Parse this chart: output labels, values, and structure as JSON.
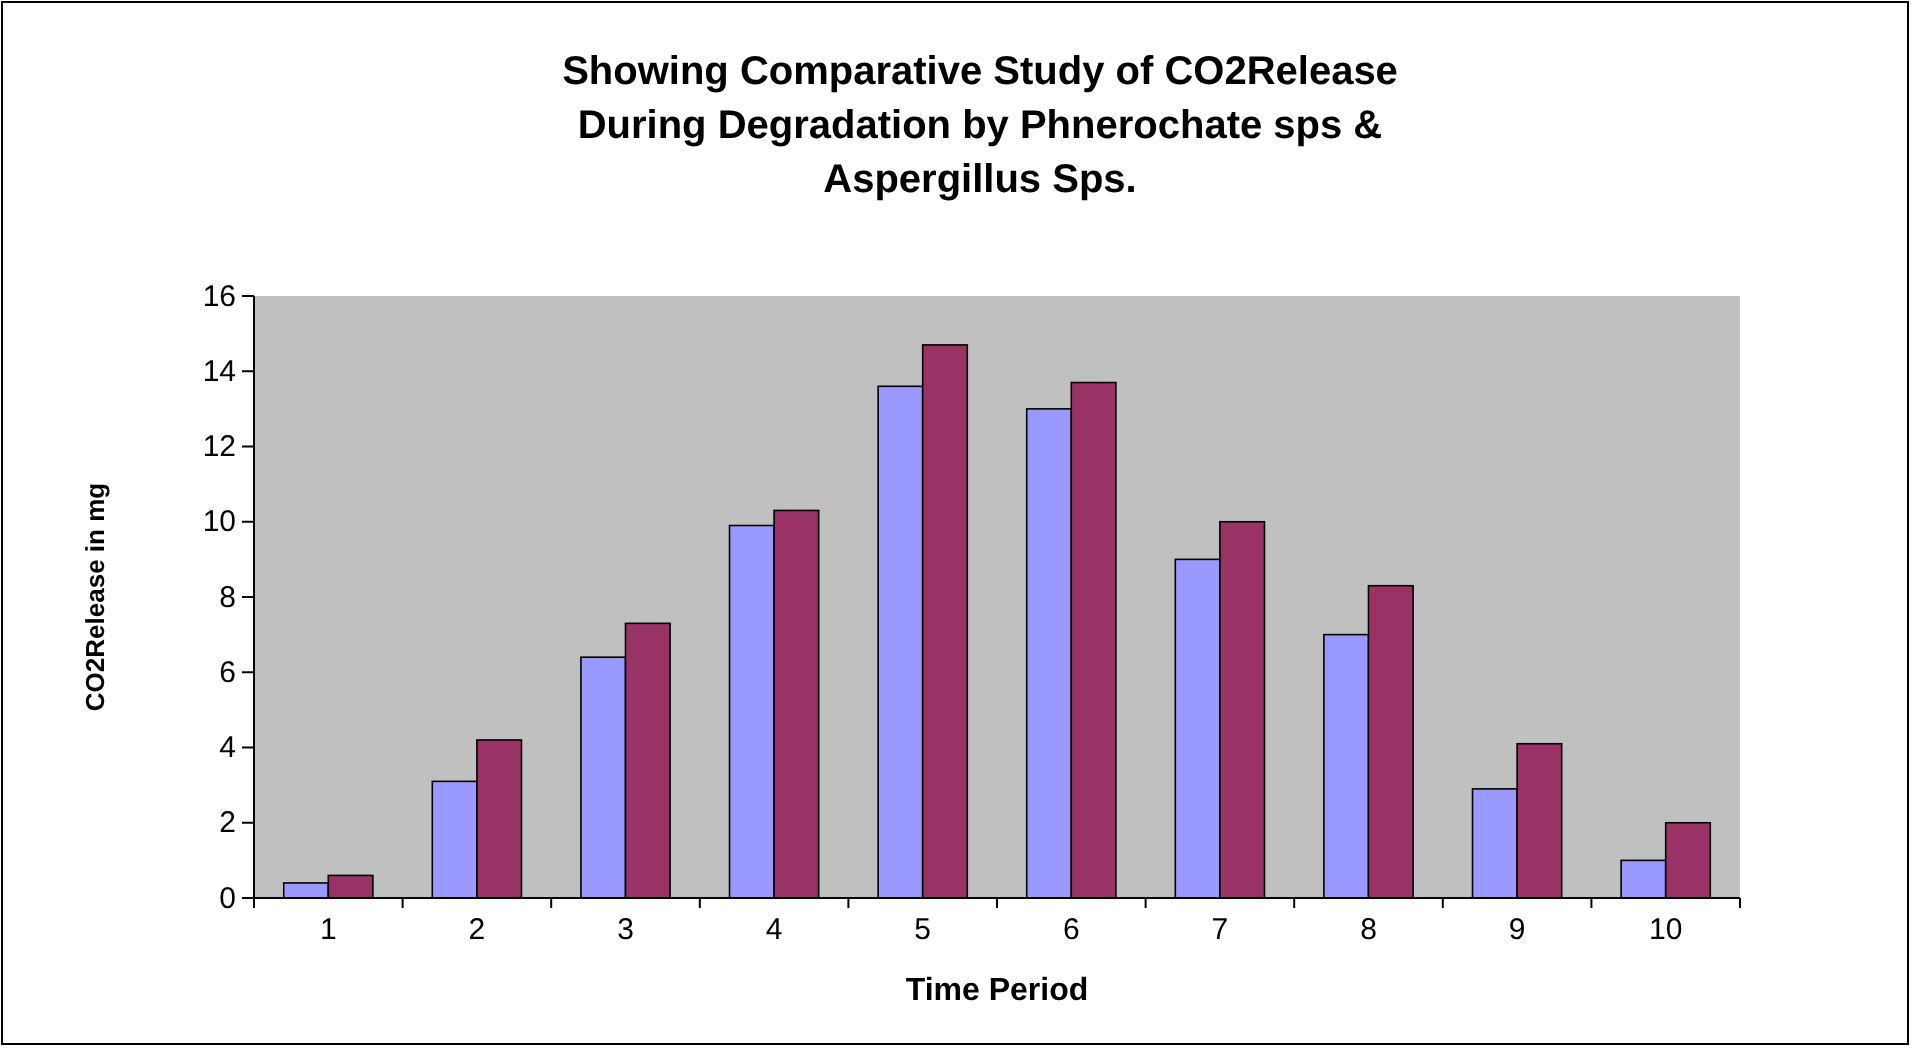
{
  "chart_data": {
    "type": "bar",
    "title": "Showing Comparative Study of CO2Release During Degradation by Phnerochate sps & Aspergillus Sps.",
    "xlabel": "Time Period",
    "ylabel": "CO2Release in mg",
    "categories": [
      "1",
      "2",
      "3",
      "4",
      "5",
      "6",
      "7",
      "8",
      "9",
      "10"
    ],
    "series": [
      {
        "color": "#9999ff",
        "values": [
          0.4,
          3.1,
          6.4,
          9.9,
          13.6,
          13.0,
          9.0,
          7.0,
          2.9,
          1.0
        ]
      },
      {
        "color": "#993366",
        "values": [
          0.6,
          4.2,
          7.3,
          10.3,
          14.7,
          13.7,
          10.0,
          8.3,
          4.1,
          2.0
        ]
      }
    ],
    "ylim": [
      0,
      16
    ],
    "yticks": [
      0,
      2,
      4,
      6,
      8,
      10,
      12,
      14,
      16
    ],
    "grid": false
  }
}
